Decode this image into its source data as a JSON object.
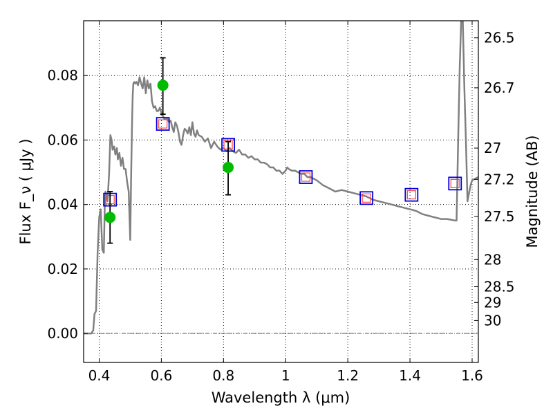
{
  "chart_data": {
    "type": "scatter",
    "xlabel": "Wavelength  λ (μm)",
    "ylabel": "Flux  F_ν  ( μJy )",
    "y2label": "Magnitude (AB)",
    "xlim": [
      0.35,
      1.62
    ],
    "ylim": [
      -0.009,
      0.097
    ],
    "grid": true,
    "x_ticks": [
      0.4,
      0.6,
      0.8,
      1.0,
      1.2,
      1.4,
      1.6
    ],
    "x_tick_labels": [
      "0.4",
      "0.6",
      "0.8",
      "1",
      "1.2",
      "1.4",
      "1.6"
    ],
    "y_ticks": [
      0.0,
      0.02,
      0.04,
      0.06,
      0.08
    ],
    "y_tick_labels": [
      "0.00",
      "0.02",
      "0.04",
      "0.06",
      "0.08"
    ],
    "y2_ticks": [
      {
        "flux": 0.0917,
        "label": "26.5"
      },
      {
        "flux": 0.0762,
        "label": "26.7"
      },
      {
        "flux": 0.0575,
        "label": "27"
      },
      {
        "flux": 0.0478,
        "label": "27.2"
      },
      {
        "flux": 0.0363,
        "label": "27.5"
      },
      {
        "flux": 0.0229,
        "label": "28"
      },
      {
        "flux": 0.0145,
        "label": "28.5"
      },
      {
        "flux": 0.0096,
        "label": "29"
      },
      {
        "flux": 0.004,
        "label": "30"
      }
    ],
    "colors": {
      "model": "#808080",
      "observed": "#00bb00",
      "model_photometry": "#0000dd",
      "model_photometry_inner": "#ff4444",
      "errorbar": "#000000"
    },
    "series": [
      {
        "kind": "line",
        "x": [
          0.35,
          0.375,
          0.381,
          0.385,
          0.39,
          0.395,
          0.4,
          0.405,
          0.41,
          0.415,
          0.418,
          0.42,
          0.423,
          0.427,
          0.432,
          0.436,
          0.44,
          0.443,
          0.448,
          0.452,
          0.457,
          0.46,
          0.465,
          0.47,
          0.475,
          0.48,
          0.485,
          0.49,
          0.495,
          0.5,
          0.503,
          0.506,
          0.508,
          0.51,
          0.513,
          0.516,
          0.52,
          0.525,
          0.53,
          0.535,
          0.54,
          0.545,
          0.55,
          0.555,
          0.56,
          0.565,
          0.57,
          0.575,
          0.58,
          0.585,
          0.59,
          0.595,
          0.6,
          0.605,
          0.61,
          0.615,
          0.62,
          0.625,
          0.63,
          0.635,
          0.64,
          0.645,
          0.65,
          0.655,
          0.66,
          0.665,
          0.67,
          0.675,
          0.68,
          0.685,
          0.69,
          0.695,
          0.7,
          0.705,
          0.71,
          0.715,
          0.72,
          0.73,
          0.74,
          0.75,
          0.76,
          0.77,
          0.78,
          0.79,
          0.8,
          0.81,
          0.82,
          0.83,
          0.84,
          0.85,
          0.86,
          0.87,
          0.88,
          0.89,
          0.9,
          0.91,
          0.92,
          0.93,
          0.94,
          0.95,
          0.96,
          0.97,
          0.98,
          0.99,
          1.0,
          1.005,
          1.01,
          1.02,
          1.03,
          1.04,
          1.05,
          1.06,
          1.07,
          1.08,
          1.1,
          1.12,
          1.14,
          1.16,
          1.18,
          1.2,
          1.22,
          1.24,
          1.26,
          1.28,
          1.3,
          1.32,
          1.34,
          1.36,
          1.38,
          1.4,
          1.42,
          1.44,
          1.46,
          1.48,
          1.5,
          1.52,
          1.545,
          1.55,
          1.555,
          1.56,
          1.565,
          1.57,
          1.575,
          1.58,
          1.585,
          1.59,
          1.595,
          1.6,
          1.61,
          1.62
        ],
        "y": [
          0.0,
          0.0,
          0.001,
          0.006,
          0.007,
          0.025,
          0.036,
          0.0385,
          0.026,
          0.025,
          0.04,
          0.044,
          0.043,
          0.041,
          0.05,
          0.0615,
          0.06,
          0.057,
          0.058,
          0.0555,
          0.0575,
          0.054,
          0.056,
          0.052,
          0.0545,
          0.051,
          0.051,
          0.047,
          0.044,
          0.029,
          0.05,
          0.066,
          0.074,
          0.0775,
          0.078,
          0.0775,
          0.078,
          0.077,
          0.0795,
          0.0775,
          0.076,
          0.0795,
          0.0745,
          0.0785,
          0.076,
          0.0775,
          0.072,
          0.07,
          0.0705,
          0.069,
          0.069,
          0.07,
          0.0685,
          0.0675,
          0.0665,
          0.0665,
          0.0665,
          0.0655,
          0.066,
          0.064,
          0.0625,
          0.0655,
          0.0645,
          0.0625,
          0.0595,
          0.0585,
          0.0615,
          0.0635,
          0.063,
          0.062,
          0.064,
          0.0615,
          0.0655,
          0.062,
          0.061,
          0.063,
          0.0615,
          0.061,
          0.0595,
          0.0605,
          0.0575,
          0.0595,
          0.058,
          0.057,
          0.0575,
          0.0565,
          0.0575,
          0.0565,
          0.056,
          0.057,
          0.0555,
          0.0555,
          0.0545,
          0.055,
          0.054,
          0.054,
          0.053,
          0.053,
          0.0525,
          0.0515,
          0.0515,
          0.0505,
          0.0505,
          0.0495,
          0.0505,
          0.0515,
          0.051,
          0.0505,
          0.0505,
          0.05,
          0.0495,
          0.0495,
          0.0485,
          0.0485,
          0.0475,
          0.046,
          0.045,
          0.044,
          0.0445,
          0.044,
          0.0435,
          0.043,
          0.0425,
          0.0415,
          0.041,
          0.0405,
          0.04,
          0.0395,
          0.039,
          0.0385,
          0.038,
          0.037,
          0.0365,
          0.036,
          0.0355,
          0.0355,
          0.035,
          0.035,
          0.06,
          0.082,
          0.098,
          0.097,
          0.076,
          0.06,
          0.041,
          0.0435,
          0.046,
          0.0475,
          0.048,
          0.0485
        ]
      },
      {
        "kind": "model_photometry",
        "x": [
          0.435,
          0.605,
          0.815,
          1.065,
          1.26,
          1.405,
          1.545
        ],
        "y": [
          0.0415,
          0.065,
          0.0585,
          0.0485,
          0.042,
          0.043,
          0.0465
        ]
      },
      {
        "kind": "observed",
        "x": [
          0.435,
          0.605,
          0.815
        ],
        "y": [
          0.036,
          0.077,
          0.0515
        ],
        "yerr_low": [
          0.028,
          0.068,
          0.043
        ],
        "yerr_high": [
          0.044,
          0.0855,
          0.0595
        ]
      }
    ]
  }
}
